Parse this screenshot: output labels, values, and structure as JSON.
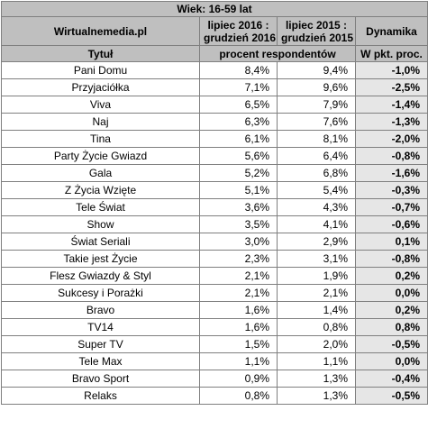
{
  "header": {
    "age_group": "Wiek: 16-59 lat",
    "source": "Wirtualnemedia.pl",
    "period_2016": [
      "lipiec 2016 :",
      "grudzień 2016"
    ],
    "period_2015": [
      "lipiec 2015 :",
      "grudzień 2015"
    ],
    "dynamics": "Dynamika",
    "title_col": "Tytuł",
    "respondents": "procent respondentów",
    "pp_change": "W pkt. proc."
  },
  "rows": [
    {
      "title": "Pani Domu",
      "v2016": "8,4%",
      "v2015": "9,4%",
      "dyn": "-1,0%"
    },
    {
      "title": "Przyjaciółka",
      "v2016": "7,1%",
      "v2015": "9,6%",
      "dyn": "-2,5%"
    },
    {
      "title": "Viva",
      "v2016": "6,5%",
      "v2015": "7,9%",
      "dyn": "-1,4%"
    },
    {
      "title": "Naj",
      "v2016": "6,3%",
      "v2015": "7,6%",
      "dyn": "-1,3%"
    },
    {
      "title": "Tina",
      "v2016": "6,1%",
      "v2015": "8,1%",
      "dyn": "-2,0%"
    },
    {
      "title": "Party Życie Gwiazd",
      "v2016": "5,6%",
      "v2015": "6,4%",
      "dyn": "-0,8%"
    },
    {
      "title": "Gala",
      "v2016": "5,2%",
      "v2015": "6,8%",
      "dyn": "-1,6%"
    },
    {
      "title": "Z Życia Wzięte",
      "v2016": "5,1%",
      "v2015": "5,4%",
      "dyn": "-0,3%"
    },
    {
      "title": "Tele Świat",
      "v2016": "3,6%",
      "v2015": "4,3%",
      "dyn": "-0,7%"
    },
    {
      "title": "Show",
      "v2016": "3,5%",
      "v2015": "4,1%",
      "dyn": "-0,6%"
    },
    {
      "title": "Świat Seriali",
      "v2016": "3,0%",
      "v2015": "2,9%",
      "dyn": "0,1%"
    },
    {
      "title": "Takie jest Życie",
      "v2016": "2,3%",
      "v2015": "3,1%",
      "dyn": "-0,8%"
    },
    {
      "title": "Flesz Gwiazdy & Styl",
      "v2016": "2,1%",
      "v2015": "1,9%",
      "dyn": "0,2%"
    },
    {
      "title": "Sukcesy i Porażki",
      "v2016": "2,1%",
      "v2015": "2,1%",
      "dyn": "0,0%"
    },
    {
      "title": "Bravo",
      "v2016": "1,6%",
      "v2015": "1,4%",
      "dyn": "0,2%"
    },
    {
      "title": "TV14",
      "v2016": "1,6%",
      "v2015": "0,8%",
      "dyn": "0,8%"
    },
    {
      "title": "Super TV",
      "v2016": "1,5%",
      "v2015": "2,0%",
      "dyn": "-0,5%"
    },
    {
      "title": "Tele Max",
      "v2016": "1,1%",
      "v2015": "1,1%",
      "dyn": "0,0%"
    },
    {
      "title": "Bravo Sport",
      "v2016": "0,9%",
      "v2015": "1,3%",
      "dyn": "-0,4%"
    },
    {
      "title": "Relaks",
      "v2016": "0,8%",
      "v2015": "1,3%",
      "dyn": "-0,5%"
    }
  ]
}
